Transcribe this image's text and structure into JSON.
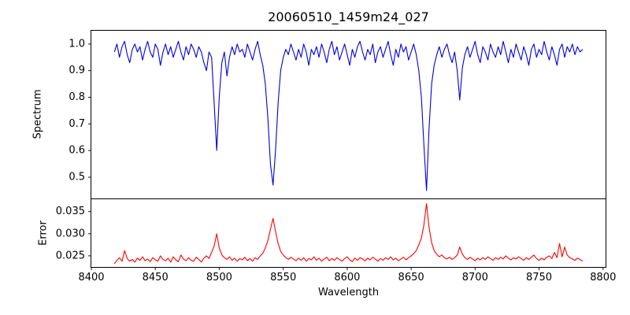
{
  "figure": {
    "title": "20060510_1459m24_027",
    "background": "#ffffff",
    "spine_color": "#000000"
  },
  "chart_data": [
    {
      "type": "line",
      "name": "spectrum",
      "title": "20060510_1459m24_027",
      "ylabel": "Spectrum",
      "color": "#0000e0",
      "grid": false,
      "legend": "none",
      "xlim": [
        8400,
        8802
      ],
      "ylim": [
        0.42,
        1.05
      ],
      "yticks": [
        0.5,
        0.6,
        0.7,
        0.8,
        0.9,
        1.0
      ],
      "ytick_labels": [
        "0.5",
        "0.6",
        "0.7",
        "0.8",
        "0.9",
        "1.0"
      ],
      "annotations": [
        "absorption lines near 8498, 8542, 8662, 8688"
      ],
      "x_start": 8418,
      "x_step": 2,
      "y": [
        0.97,
        1.0,
        0.95,
        0.99,
        1.01,
        0.96,
        0.93,
        0.98,
        1.0,
        0.97,
        0.99,
        0.94,
        0.98,
        1.01,
        0.97,
        0.95,
        1.0,
        0.98,
        0.92,
        0.97,
        1.0,
        0.96,
        0.99,
        0.95,
        0.98,
        1.01,
        0.97,
        0.94,
        0.99,
        0.96,
        1.0,
        0.98,
        0.95,
        0.99,
        0.97,
        0.93,
        0.9,
        0.97,
        0.95,
        0.78,
        0.6,
        0.8,
        0.93,
        0.97,
        0.88,
        0.95,
        0.99,
        0.96,
        1.0,
        0.97,
        0.98,
        0.95,
        1.0,
        0.97,
        0.94,
        0.98,
        1.01,
        0.96,
        0.92,
        0.85,
        0.72,
        0.55,
        0.47,
        0.6,
        0.78,
        0.9,
        0.95,
        0.98,
        0.96,
        1.0,
        0.97,
        0.94,
        0.98,
        0.95,
        1.0,
        0.97,
        0.92,
        0.98,
        0.96,
        0.99,
        0.95,
        1.0,
        0.97,
        0.93,
        0.98,
        1.01,
        0.96,
        0.99,
        0.94,
        0.97,
        1.0,
        0.96,
        0.92,
        0.98,
        0.95,
        0.99,
        1.01,
        0.97,
        0.94,
        0.98,
        0.96,
        1.0,
        0.93,
        0.97,
        0.99,
        0.95,
        0.98,
        1.01,
        0.96,
        0.92,
        0.98,
        0.95,
        1.0,
        0.97,
        0.99,
        0.94,
        0.97,
        1.0,
        0.96,
        0.9,
        0.8,
        0.62,
        0.45,
        0.68,
        0.85,
        0.92,
        0.96,
        0.99,
        0.95,
        0.98,
        1.0,
        0.96,
        0.93,
        0.97,
        0.9,
        0.79,
        0.91,
        0.96,
        0.99,
        0.95,
        0.98,
        1.01,
        0.96,
        0.93,
        0.99,
        0.97,
        0.94,
        1.0,
        0.97,
        0.95,
        0.99,
        0.96,
        1.01,
        0.97,
        0.93,
        0.98,
        0.95,
        1.0,
        0.97,
        0.94,
        0.99,
        0.96,
        0.92,
        0.98,
        1.0,
        0.95,
        0.98,
        0.96,
        1.01,
        0.97,
        0.94,
        0.99,
        0.96,
        0.92,
        0.98,
        1.0,
        0.95,
        0.99,
        0.97,
        1.0,
        0.96,
        0.99,
        0.97,
        0.98
      ]
    },
    {
      "type": "line",
      "name": "error",
      "ylabel": "Error",
      "xlabel": "Wavelength",
      "color": "#ff0000",
      "grid": false,
      "legend": "none",
      "xlim": [
        8400,
        8802
      ],
      "ylim": [
        0.0225,
        0.0378
      ],
      "yticks": [
        0.025,
        0.03,
        0.035
      ],
      "ytick_labels": [
        "0.025",
        "0.030",
        "0.035"
      ],
      "xticks": [
        8400,
        8450,
        8500,
        8550,
        8600,
        8650,
        8700,
        8750,
        8800
      ],
      "xtick_labels": [
        "8400",
        "8450",
        "8500",
        "8550",
        "8600",
        "8650",
        "8700",
        "8750",
        "8800"
      ],
      "annotations": [
        "error peaks at 8498, 8542, 8662 matching absorption lines"
      ],
      "x_start": 8418,
      "x_step": 2,
      "y": [
        0.0232,
        0.024,
        0.0246,
        0.0238,
        0.0262,
        0.0244,
        0.0238,
        0.0242,
        0.0236,
        0.0245,
        0.024,
        0.0248,
        0.0239,
        0.0243,
        0.0237,
        0.0246,
        0.0241,
        0.0238,
        0.025,
        0.0242,
        0.0239,
        0.0245,
        0.0236,
        0.0248,
        0.0241,
        0.0237,
        0.0252,
        0.0243,
        0.0239,
        0.0246,
        0.024,
        0.0238,
        0.0247,
        0.0242,
        0.0236,
        0.0245,
        0.025,
        0.0244,
        0.0258,
        0.0272,
        0.03,
        0.0268,
        0.0252,
        0.0246,
        0.0242,
        0.0248,
        0.024,
        0.0245,
        0.0238,
        0.0244,
        0.0241,
        0.0247,
        0.0239,
        0.0244,
        0.0238,
        0.0246,
        0.0242,
        0.025,
        0.0256,
        0.0268,
        0.0285,
        0.031,
        0.0335,
        0.0305,
        0.0278,
        0.026,
        0.0252,
        0.0246,
        0.0242,
        0.0247,
        0.0243,
        0.0239,
        0.0245,
        0.024,
        0.0246,
        0.0238,
        0.0244,
        0.0241,
        0.0248,
        0.024,
        0.0245,
        0.0238,
        0.0243,
        0.0247,
        0.0239,
        0.0244,
        0.024,
        0.0246,
        0.0242,
        0.0238,
        0.0244,
        0.0248,
        0.0241,
        0.0237,
        0.0245,
        0.024,
        0.0246,
        0.0243,
        0.0239,
        0.0245,
        0.0241,
        0.0247,
        0.0243,
        0.0238,
        0.0244,
        0.024,
        0.0246,
        0.0242,
        0.0248,
        0.0241,
        0.0245,
        0.0239,
        0.0243,
        0.0247,
        0.0241,
        0.0246,
        0.025,
        0.0255,
        0.0262,
        0.0275,
        0.029,
        0.032,
        0.0368,
        0.0315,
        0.028,
        0.0262,
        0.0254,
        0.0248,
        0.0252,
        0.0246,
        0.0243,
        0.0247,
        0.0242,
        0.0246,
        0.0252,
        0.027,
        0.0254,
        0.0246,
        0.0242,
        0.0247,
        0.0243,
        0.0239,
        0.0245,
        0.0241,
        0.0246,
        0.0242,
        0.0248,
        0.0244,
        0.024,
        0.0246,
        0.0242,
        0.0247,
        0.0243,
        0.025,
        0.0245,
        0.0241,
        0.0246,
        0.0243,
        0.0248,
        0.0244,
        0.024,
        0.0246,
        0.0242,
        0.0247,
        0.0252,
        0.0244,
        0.024,
        0.0245,
        0.0241,
        0.0247,
        0.025,
        0.0244,
        0.0258,
        0.0246,
        0.0278,
        0.0248,
        0.027,
        0.0252,
        0.0246,
        0.0243,
        0.024,
        0.0245,
        0.0242,
        0.0238
      ]
    }
  ]
}
